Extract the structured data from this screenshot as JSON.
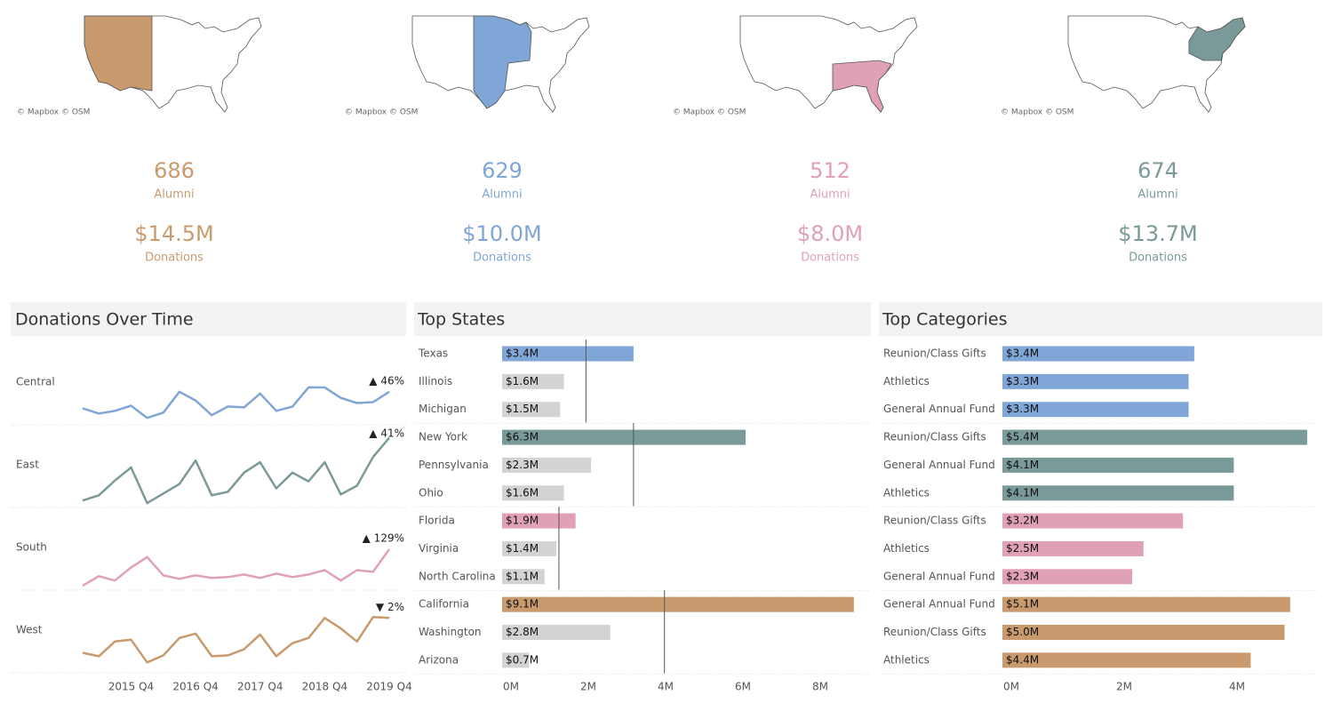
{
  "regions": [
    {
      "color": "#c99a6e",
      "attribution": "© Mapbox © OSM",
      "alumni": 686,
      "alumni_label": "Alumni",
      "donations": "$14.5M",
      "donations_label": "Donations"
    },
    {
      "color": "#7fa6d6",
      "attribution": "© Mapbox © OSM",
      "alumni": 629,
      "alumni_label": "Alumni",
      "donations": "$10.0M",
      "donations_label": "Donations"
    },
    {
      "color": "#e0a0b8",
      "attribution": "© Mapbox © OSM",
      "alumni": 512,
      "alumni_label": "Alumni",
      "donations": "$8.0M",
      "donations_label": "Donations"
    },
    {
      "color": "#7a9a9a",
      "attribution": "© Mapbox © OSM",
      "alumni": 674,
      "alumni_label": "Alumni",
      "donations": "$13.7M",
      "donations_label": "Donations"
    }
  ],
  "chart_data": [
    {
      "type": "line",
      "title": "Donations Over Time",
      "categories": [
        null,
        null,
        null,
        "2015 Q4",
        null,
        null,
        null,
        "2016 Q4",
        null,
        null,
        null,
        "2017 Q4",
        null,
        null,
        null,
        "2018 Q4",
        null,
        null,
        null,
        "2019 Q4"
      ],
      "ylim": [
        0,
        95
      ],
      "series": [
        {
          "name": "Central",
          "color": "#7fa6d6",
          "change_label": "▲ 46%",
          "values": [
            19,
            13,
            16,
            22,
            8,
            14,
            38,
            28,
            11,
            21,
            20,
            36,
            16,
            21,
            43,
            43,
            31,
            25,
            26,
            38
          ]
        },
        {
          "name": "East",
          "color": "#7a9a9a",
          "change_label": "▲ 41%",
          "values": [
            8,
            14,
            31,
            46,
            5,
            16,
            27,
            54,
            14,
            18,
            40,
            52,
            22,
            40,
            30,
            52,
            15,
            25,
            58,
            80
          ]
        },
        {
          "name": "South",
          "color": "#e0a0b8",
          "change_label": "▲ 129%",
          "values": [
            5,
            16,
            11,
            26,
            38,
            17,
            13,
            17,
            14,
            15,
            18,
            14,
            19,
            15,
            18,
            23,
            11,
            23,
            21,
            47
          ]
        },
        {
          "name": "West",
          "color": "#c99a6e",
          "change_label": "▼ 2%",
          "values": [
            23,
            19,
            36,
            38,
            12,
            20,
            40,
            45,
            19,
            20,
            27,
            44,
            19,
            34,
            40,
            63,
            51,
            36,
            64,
            63
          ]
        }
      ]
    },
    {
      "type": "bar",
      "title": "Top States",
      "other_color": "#d3d3d3",
      "xlim": [
        0,
        9.5
      ],
      "xticks": [
        {
          "value": 0,
          "label": "0M"
        },
        {
          "value": 2,
          "label": "2M"
        },
        {
          "value": 4,
          "label": "4M"
        },
        {
          "value": 6,
          "label": "6M"
        },
        {
          "value": 8,
          "label": "8M"
        }
      ],
      "groups": [
        {
          "color": "#7fa6d6",
          "reference": 2.17,
          "categories": [
            "Texas",
            "Illinois",
            "Michigan"
          ],
          "values": [
            3.4,
            1.6,
            1.5
          ],
          "value_labels": [
            "$3.4M",
            "$1.6M",
            "$1.5M"
          ]
        },
        {
          "color": "#7a9a9a",
          "reference": 3.4,
          "categories": [
            "New York",
            "Pennsylvania",
            "Ohio"
          ],
          "values": [
            6.3,
            2.3,
            1.6
          ],
          "value_labels": [
            "$6.3M",
            "$2.3M",
            "$1.6M"
          ]
        },
        {
          "color": "#e0a0b8",
          "reference": 1.47,
          "categories": [
            "Florida",
            "Virginia",
            "North Carolina"
          ],
          "values": [
            1.9,
            1.4,
            1.1
          ],
          "value_labels": [
            "$1.9M",
            "$1.4M",
            "$1.1M"
          ]
        },
        {
          "color": "#c99a6e",
          "reference": 4.2,
          "categories": [
            "California",
            "Washington",
            "Arizona"
          ],
          "values": [
            9.1,
            2.8,
            0.7
          ],
          "value_labels": [
            "$9.1M",
            "$2.8M",
            "$0.7M"
          ]
        }
      ]
    },
    {
      "type": "bar",
      "title": "Top Categories",
      "xlim": [
        0,
        5.6
      ],
      "xticks": [
        {
          "value": 0,
          "label": "0M"
        },
        {
          "value": 2,
          "label": "2M"
        },
        {
          "value": 4,
          "label": "4M"
        }
      ],
      "groups": [
        {
          "color": "#7fa6d6",
          "categories": [
            "Reunion/Class Gifts",
            "Athletics",
            "General Annual Fund"
          ],
          "values": [
            3.4,
            3.3,
            3.3
          ],
          "value_labels": [
            "$3.4M",
            "$3.3M",
            "$3.3M"
          ]
        },
        {
          "color": "#7a9a9a",
          "categories": [
            "Reunion/Class Gifts",
            "General Annual Fund",
            "Athletics"
          ],
          "values": [
            5.4,
            4.1,
            4.1
          ],
          "value_labels": [
            "$5.4M",
            "$4.1M",
            "$4.1M"
          ]
        },
        {
          "color": "#e0a0b8",
          "categories": [
            "Reunion/Class Gifts",
            "Athletics",
            "General Annual Fund"
          ],
          "values": [
            3.2,
            2.5,
            2.3
          ],
          "value_labels": [
            "$3.2M",
            "$2.5M",
            "$2.3M"
          ]
        },
        {
          "color": "#c99a6e",
          "categories": [
            "General Annual Fund",
            "Reunion/Class Gifts",
            "Athletics"
          ],
          "values": [
            5.1,
            5.0,
            4.4
          ],
          "value_labels": [
            "$5.1M",
            "$5.0M",
            "$4.4M"
          ]
        }
      ]
    }
  ]
}
